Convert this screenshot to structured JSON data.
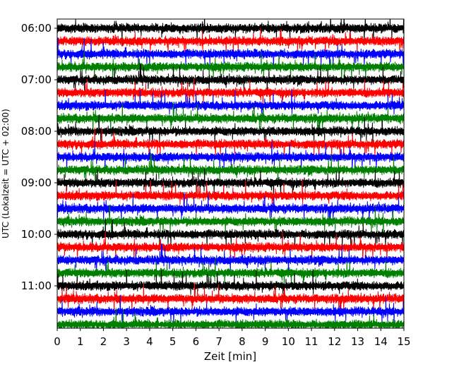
{
  "chart_data": {
    "type": "line",
    "title": "",
    "xlabel": "Zeit  [min]",
    "ylabel": "UTC (Lokalzeit = UTC + 02:00)",
    "xlim": [
      0,
      15
    ],
    "x_ticks": [
      0,
      1,
      2,
      3,
      4,
      5,
      6,
      7,
      8,
      9,
      10,
      11,
      12,
      13,
      14,
      15
    ],
    "x_tick_labels": [
      "0",
      "1",
      "2",
      "3",
      "4",
      "5",
      "6",
      "7",
      "8",
      "9",
      "10",
      "11",
      "12",
      "13",
      "14",
      "15"
    ],
    "y_tick_labels": [
      "06:00",
      "07:00",
      "08:00",
      "09:00",
      "10:00",
      "11:00"
    ],
    "y_tick_hours": [
      6,
      7,
      8,
      9,
      10,
      11
    ],
    "time_range_utc": [
      "06:00",
      "12:00"
    ],
    "trace_interval_min": 15,
    "trace_start_times_utc": [
      "06:00",
      "06:15",
      "06:30",
      "06:45",
      "07:00",
      "07:15",
      "07:30",
      "07:45",
      "08:00",
      "08:15",
      "08:30",
      "08:45",
      "09:00",
      "09:15",
      "09:30",
      "09:45",
      "10:00",
      "10:15",
      "10:30",
      "10:45",
      "11:00",
      "11:15",
      "11:30",
      "11:45"
    ],
    "trace_color_cycle": [
      "#000000",
      "#ff0000",
      "#0000ff",
      "#008000"
    ],
    "grid": false,
    "legend": false
  }
}
